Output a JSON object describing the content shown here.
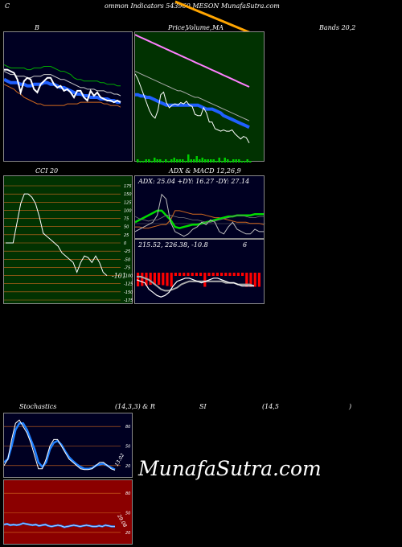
{
  "header": {
    "left": "C",
    "main": "ommon  Indicators 543960  MESON  MunafaSutra.com"
  },
  "bb": {
    "label_b": "B",
    "label_price": "Price,",
    "label_volume": "Volume,",
    "label_ma": "MA",
    "label_bands": "Bands 20,2"
  },
  "cci": {
    "label": "CCI 20",
    "value": "-101"
  },
  "adx": {
    "label": "ADX  & MACD 12,26,9",
    "line": "ADX: 25.04  +DY: 16.27 -DY: 27.14"
  },
  "macd": {
    "line": "215.52,  226.38,  -10.8",
    "extra": "6"
  },
  "stoch": {
    "label_left": "Stochastics",
    "label_params": "(14,3,3) & R",
    "label_si": "SI",
    "label_rsi": "(14,5",
    "label_close": ")",
    "value": "13.02"
  },
  "rsi": {
    "value": "29.08"
  },
  "watermark": "MunafaSutra.com",
  "colors": {
    "green_bg": "#013201",
    "navy_bg": "#000022",
    "red_bg": "#8b0000",
    "grid": "#d2691e",
    "blue_line": "#1e90ff",
    "orange": "#ffa500"
  },
  "chart_data": [
    {
      "type": "line",
      "name": "price-bollinger-left",
      "series": [
        {
          "values": [
            60,
            59,
            58,
            58,
            58,
            58,
            58,
            57,
            57,
            58,
            58,
            58,
            59,
            59,
            59,
            58,
            57,
            56,
            56,
            55,
            54,
            52,
            51,
            51,
            50,
            50,
            50,
            50,
            50,
            49,
            49,
            48,
            48,
            48,
            47,
            47
          ]
        },
        {
          "values": [
            56,
            55,
            54,
            54,
            53,
            53,
            53,
            52,
            52,
            53,
            53,
            53,
            54,
            54,
            54,
            53,
            52,
            51,
            51,
            50,
            49,
            48,
            47,
            46,
            46,
            45,
            45,
            45,
            44,
            44,
            44,
            43,
            43,
            42,
            42,
            41
          ]
        },
        {
          "values": [
            51,
            50,
            49,
            49,
            49,
            48,
            48,
            47,
            47,
            48,
            48,
            48,
            49,
            49,
            48,
            48,
            47,
            46,
            46,
            45,
            44,
            43,
            42,
            42,
            41,
            41,
            40,
            40,
            40,
            39,
            39,
            39,
            38,
            38,
            37,
            37
          ]
        },
        {
          "values": [
            48,
            47,
            46,
            45,
            43,
            42,
            40,
            39,
            38,
            37,
            36,
            36,
            35,
            35,
            35,
            35,
            35,
            35,
            35,
            36,
            36,
            36,
            36,
            37,
            37,
            37,
            37,
            37,
            37,
            37,
            36,
            36,
            35,
            35,
            35,
            34
          ]
        },
        {
          "values": [
            57,
            57,
            56,
            55,
            51,
            43,
            50,
            52,
            51,
            45,
            43,
            48,
            50,
            52,
            52,
            48,
            46,
            47,
            44,
            45,
            43,
            40,
            44,
            44,
            40,
            38,
            44,
            41,
            43,
            40,
            39,
            38,
            38,
            37,
            38,
            37
          ]
        }
      ]
    },
    {
      "type": "line",
      "name": "price-volume-ma",
      "series": [
        {
          "values": [
            98,
            97,
            96,
            95,
            94,
            93,
            92,
            91,
            90,
            89,
            88,
            87,
            86,
            85,
            84,
            83,
            82,
            81,
            80,
            79,
            78,
            77,
            76,
            75,
            74,
            73,
            72,
            71,
            70,
            69,
            68,
            67,
            66,
            65,
            64,
            63,
            62,
            61,
            60,
            59,
            58
          ]
        },
        {
          "values": [
            70,
            69,
            68,
            67,
            66,
            65,
            64,
            63,
            62,
            61,
            60,
            59,
            58,
            57,
            56,
            55,
            55,
            54,
            53,
            52,
            51,
            50,
            50,
            49,
            48,
            47,
            46,
            45,
            44,
            43,
            42,
            41,
            40,
            39,
            38,
            37,
            36,
            35,
            34,
            33,
            32
          ]
        },
        {
          "values": [
            52,
            52,
            51,
            51,
            50,
            50,
            49,
            48,
            47,
            46,
            45,
            44,
            44,
            44,
            44,
            44,
            44,
            44,
            44,
            44,
            44,
            44,
            44,
            43,
            42,
            41,
            41,
            41,
            40,
            39,
            38,
            36,
            35,
            34,
            33,
            32,
            31,
            30,
            29,
            28,
            27
          ]
        },
        {
          "values": [
            68,
            64,
            58,
            52,
            46,
            40,
            36,
            34,
            40,
            52,
            54,
            46,
            42,
            44,
            45,
            44,
            46,
            45,
            47,
            44,
            43,
            37,
            36,
            36,
            42,
            38,
            31,
            31,
            26,
            25,
            24,
            25,
            24,
            24,
            25,
            22,
            20,
            18,
            20,
            19,
            15
          ]
        },
        {
          "values": [
            2,
            1,
            1,
            2,
            2,
            1,
            3,
            2,
            2,
            1,
            2,
            1,
            2,
            3,
            2,
            2,
            2,
            1,
            5,
            2,
            2,
            4,
            2,
            3,
            2,
            2,
            2,
            2,
            1,
            3,
            1,
            3,
            2,
            1,
            2,
            2,
            2,
            1,
            1,
            2,
            1
          ]
        }
      ]
    },
    {
      "type": "line",
      "name": "cci",
      "ylim": [
        -175,
        175
      ],
      "yticks": [
        175,
        150,
        125,
        100,
        75,
        50,
        25,
        0,
        -25,
        -50,
        -75,
        -100,
        -125,
        -150,
        -175
      ],
      "series": [
        {
          "values": [
            0,
            0,
            0,
            60,
            120,
            150,
            150,
            140,
            120,
            80,
            30,
            20,
            10,
            0,
            -10,
            -30,
            -40,
            -50,
            -60,
            -90,
            -60,
            -40,
            -45,
            -60,
            -40,
            -60,
            -90,
            -100
          ]
        }
      ]
    },
    {
      "type": "line",
      "name": "adx",
      "series": [
        {
          "values": [
            25,
            23,
            22,
            21,
            22,
            22,
            24,
            26,
            26,
            25,
            24,
            24,
            23,
            22,
            22,
            21,
            20,
            20,
            21,
            22,
            23,
            24,
            25,
            26,
            26,
            25,
            24,
            24,
            25,
            25
          ]
        },
        {
          "values": [
            16,
            16,
            15,
            15,
            16,
            17,
            18,
            18,
            22,
            30,
            30,
            29,
            28,
            27,
            27,
            27,
            26,
            25,
            24,
            24,
            23,
            22,
            21,
            20,
            20,
            20,
            19,
            19,
            19,
            18
          ]
        },
        {
          "values": [
            20,
            22,
            24,
            26,
            28,
            30,
            30,
            26,
            22,
            16,
            15,
            16,
            17,
            18,
            18,
            19,
            20,
            21,
            22,
            23,
            24,
            25,
            25,
            26,
            26,
            26,
            26,
            27,
            27,
            27
          ]
        },
        {
          "values": [
            12,
            14,
            16,
            18,
            20,
            26,
            44,
            40,
            20,
            12,
            10,
            8,
            10,
            14,
            16,
            20,
            18,
            22,
            20,
            12,
            10,
            16,
            20,
            14,
            12,
            10,
            10,
            14,
            12,
            12
          ]
        }
      ]
    },
    {
      "type": "line",
      "name": "macd",
      "series": [
        {
          "values": [
            230,
            229,
            228,
            224,
            222,
            220,
            219,
            220,
            222,
            226,
            229,
            230,
            231,
            231,
            230,
            229,
            228,
            229,
            230,
            231,
            231,
            230,
            229,
            228,
            228,
            227,
            226,
            226,
            226,
            226
          ]
        },
        {
          "values": [
            232,
            232,
            231,
            230,
            228,
            226,
            224,
            223,
            223,
            224,
            225,
            227,
            228,
            229,
            229,
            229,
            229,
            229,
            229,
            229,
            229,
            229,
            228,
            228,
            228,
            227,
            227,
            227,
            227,
            226
          ]
        },
        {
          "values": [
            -2,
            -3,
            -4,
            -6,
            -6,
            -6,
            -5,
            -3,
            -1,
            2,
            4,
            3,
            3,
            2,
            1,
            0,
            -1,
            0,
            1,
            2,
            2,
            1,
            1,
            0,
            0,
            0,
            -1,
            -1,
            -1,
            -1
          ]
        }
      ]
    },
    {
      "type": "line",
      "name": "stochastics",
      "ylim": [
        0,
        100
      ],
      "yticks": [
        80,
        50,
        20
      ],
      "series": [
        {
          "values": [
            20,
            30,
            60,
            85,
            90,
            80,
            70,
            55,
            35,
            15,
            15,
            30,
            50,
            60,
            60,
            50,
            40,
            30,
            25,
            20,
            15,
            14,
            14,
            15,
            20,
            25,
            25,
            20,
            15,
            13
          ]
        },
        {
          "values": [
            25,
            30,
            50,
            75,
            85,
            85,
            75,
            60,
            45,
            25,
            18,
            25,
            45,
            55,
            58,
            52,
            42,
            33,
            27,
            22,
            18,
            15,
            15,
            16,
            20,
            22,
            23,
            20,
            17,
            14
          ]
        }
      ]
    },
    {
      "type": "line",
      "name": "rsi",
      "ylim": [
        0,
        100
      ],
      "yticks": [
        80,
        50,
        20
      ],
      "series": [
        {
          "values": [
            32,
            33,
            31,
            32,
            31,
            32,
            34,
            33,
            32,
            31,
            32,
            30,
            31,
            32,
            30,
            29,
            30,
            31,
            30,
            28,
            29,
            30,
            31,
            30,
            29,
            30,
            31,
            30,
            29,
            29,
            30,
            29,
            31,
            30,
            29,
            29
          ]
        }
      ]
    }
  ]
}
